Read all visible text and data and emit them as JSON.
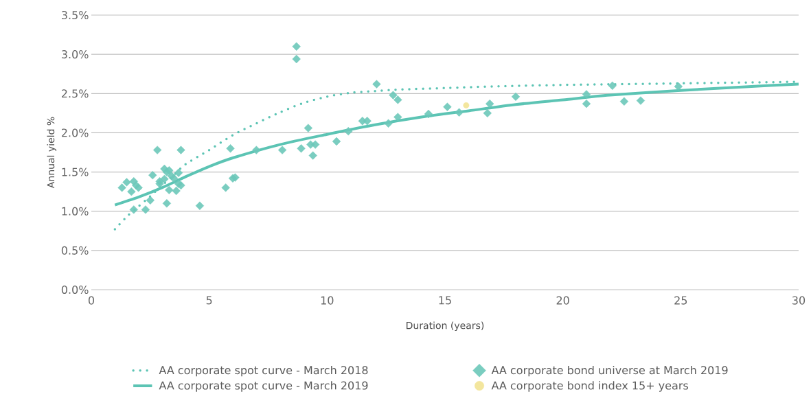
{
  "chart_data": {
    "type": "scatter",
    "xlabel": "Duration (years)",
    "ylabel": "Annual yield %",
    "xlim": [
      0,
      30
    ],
    "xticks": [
      0,
      5,
      10,
      15,
      20,
      25,
      30
    ],
    "ylim": [
      0,
      3.5
    ],
    "yticks": [
      {
        "value": 0,
        "label": "0.0%"
      },
      {
        "value": 0.5,
        "label": "0.5%"
      },
      {
        "value": 1,
        "label": "1.0%"
      },
      {
        "value": 1.5,
        "label": "1.5%"
      },
      {
        "value": 2,
        "label": "2.0%"
      },
      {
        "value": 2.5,
        "label": "2.5%"
      },
      {
        "value": 3,
        "label": "3.0%"
      },
      {
        "value": 3.5,
        "label": "3.5%"
      }
    ],
    "grid": "y",
    "legend": "bottom",
    "series": [
      {
        "name": "AA corporate spot curve - March 2018",
        "type": "line",
        "line_style": "dotted",
        "color": "#5cc4b4",
        "x": [
          1,
          1.5,
          2,
          2.5,
          3,
          3.5,
          4,
          5,
          6,
          7,
          8,
          9,
          10,
          11,
          12,
          13,
          15,
          17,
          20,
          25,
          30
        ],
        "values": [
          0.77,
          0.93,
          1.06,
          1.19,
          1.33,
          1.46,
          1.6,
          1.78,
          1.97,
          2.12,
          2.26,
          2.38,
          2.46,
          2.51,
          2.53,
          2.55,
          2.57,
          2.59,
          2.61,
          2.63,
          2.65
        ]
      },
      {
        "name": "AA corporate spot curve - March 2019",
        "type": "line",
        "line_style": "solid",
        "color": "#5cc4b4",
        "x": [
          1,
          2,
          3,
          4,
          5,
          6,
          8,
          10,
          12,
          14,
          16,
          18,
          20,
          22,
          25,
          28,
          30
        ],
        "values": [
          1.08,
          1.18,
          1.3,
          1.44,
          1.57,
          1.68,
          1.85,
          1.98,
          2.1,
          2.2,
          2.28,
          2.36,
          2.42,
          2.48,
          2.54,
          2.59,
          2.62
        ]
      },
      {
        "name": "AA corporate bond universe at March 2019",
        "type": "scatter",
        "marker": "diamond",
        "color": "#6cc8b9",
        "x": [
          1.3,
          1.5,
          1.7,
          1.8,
          1.8,
          1.9,
          2.0,
          2.3,
          2.5,
          2.6,
          2.8,
          2.9,
          2.9,
          3.1,
          3.1,
          3.2,
          3.2,
          3.3,
          3.3,
          3.4,
          3.5,
          3.6,
          3.7,
          3.7,
          3.8,
          3.8,
          4.6,
          5.7,
          5.9,
          6.0,
          6.1,
          7.0,
          8.1,
          8.7,
          8.7,
          8.9,
          9.2,
          9.3,
          9.4,
          9.5,
          10.4,
          10.9,
          11.5,
          11.7,
          12.1,
          12.6,
          12.8,
          13.0,
          13.0,
          14.3,
          15.1,
          15.6,
          16.8,
          16.9,
          18.0,
          21.0,
          21.0,
          22.1,
          22.6,
          23.3,
          24.9
        ],
        "values": [
          1.3,
          1.37,
          1.25,
          1.38,
          1.02,
          1.33,
          1.3,
          1.02,
          1.14,
          1.46,
          1.78,
          1.38,
          1.35,
          1.41,
          1.54,
          1.1,
          1.5,
          1.27,
          1.52,
          1.45,
          1.42,
          1.26,
          1.49,
          1.35,
          1.78,
          1.33,
          1.07,
          1.3,
          1.8,
          1.42,
          1.43,
          1.78,
          1.78,
          3.1,
          2.94,
          1.8,
          2.06,
          1.85,
          1.71,
          1.85,
          1.89,
          2.02,
          2.15,
          2.15,
          2.62,
          2.12,
          2.48,
          2.42,
          2.2,
          2.24,
          2.33,
          2.26,
          2.25,
          2.37,
          2.46,
          2.49,
          2.37,
          2.6,
          2.4,
          2.41,
          2.59
        ]
      },
      {
        "name": "AA corporate bond index 15+ years",
        "type": "scatter",
        "marker": "circle",
        "color": "#f2e394",
        "x": [
          15.9
        ],
        "values": [
          2.35
        ]
      }
    ]
  }
}
